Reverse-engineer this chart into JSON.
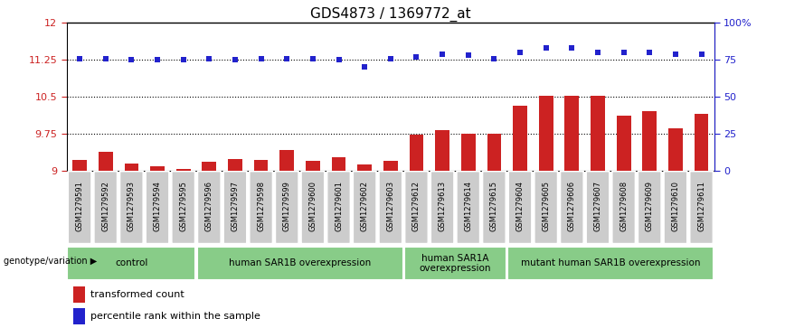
{
  "title": "GDS4873 / 1369772_at",
  "samples": [
    "GSM1279591",
    "GSM1279592",
    "GSM1279593",
    "GSM1279594",
    "GSM1279595",
    "GSM1279596",
    "GSM1279597",
    "GSM1279598",
    "GSM1279599",
    "GSM1279600",
    "GSM1279601",
    "GSM1279602",
    "GSM1279603",
    "GSM1279612",
    "GSM1279613",
    "GSM1279614",
    "GSM1279615",
    "GSM1279604",
    "GSM1279605",
    "GSM1279606",
    "GSM1279607",
    "GSM1279608",
    "GSM1279609",
    "GSM1279610",
    "GSM1279611"
  ],
  "bar_values": [
    9.22,
    9.38,
    9.15,
    9.08,
    9.04,
    9.18,
    9.24,
    9.22,
    9.42,
    9.19,
    9.27,
    9.12,
    9.2,
    9.73,
    9.82,
    9.75,
    9.75,
    10.32,
    10.52,
    10.52,
    10.52,
    10.12,
    10.2,
    9.85,
    10.15
  ],
  "scatter_values": [
    76,
    76,
    75,
    75,
    75,
    76,
    75,
    76,
    76,
    76,
    75,
    70,
    76,
    77,
    79,
    78,
    76,
    80,
    83,
    83,
    80,
    80,
    80,
    79,
    79
  ],
  "groups": [
    {
      "label": "control",
      "start": 0,
      "end": 5
    },
    {
      "label": "human SAR1B overexpression",
      "start": 5,
      "end": 13
    },
    {
      "label": "human SAR1A\noverexpression",
      "start": 13,
      "end": 17
    },
    {
      "label": "mutant human SAR1B overexpression",
      "start": 17,
      "end": 25
    }
  ],
  "ylim_left": [
    9.0,
    12.0
  ],
  "ylim_right": [
    0,
    100
  ],
  "yticks_left": [
    9.0,
    9.75,
    10.5,
    11.25,
    12.0
  ],
  "ytick_labels_left": [
    "9",
    "9.75",
    "10.5",
    "11.25",
    "12"
  ],
  "yticks_right": [
    0,
    25,
    50,
    75,
    100
  ],
  "ytick_labels_right": [
    "0",
    "25",
    "50",
    "75",
    "100%"
  ],
  "hlines": [
    9.75,
    10.5,
    11.25
  ],
  "bar_color": "#cc2222",
  "scatter_color": "#2222cc",
  "bg_color": "#ffffff",
  "group_color": "#88cc88",
  "sample_box_color": "#cccccc",
  "label_transformed": "transformed count",
  "label_percentile": "percentile rank within the sample",
  "genotype_label": "genotype/variation",
  "ylabel_left_color": "#cc2222",
  "ylabel_right_color": "#2222cc",
  "title_fontsize": 11,
  "tick_label_fontsize": 8,
  "sample_fontsize": 6.0,
  "group_fontsize": 7.5,
  "legend_fontsize": 8
}
